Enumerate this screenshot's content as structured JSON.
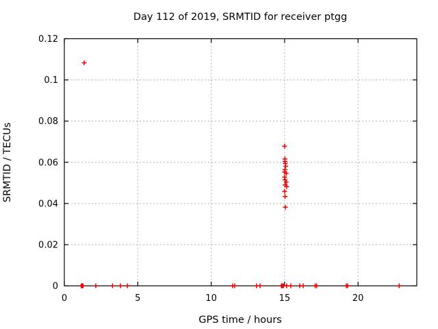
{
  "chart_data": {
    "type": "scatter",
    "title": "Day 112 of 2019, SRMTID for receiver ptgg",
    "xlabel": "GPS time / hours",
    "ylabel": "SRMTID / TECUs",
    "xlim": [
      0,
      24
    ],
    "ylim": [
      0,
      0.12
    ],
    "xticks": [
      0,
      5,
      10,
      15,
      20
    ],
    "xtick_labels": [
      "0",
      "5",
      "10",
      "15",
      "20"
    ],
    "yticks": [
      0,
      0.02,
      0.04,
      0.06,
      0.08,
      0.1,
      0.12
    ],
    "ytick_labels": [
      "0",
      "0.02",
      "0.04",
      "0.06",
      "0.08",
      "0.1",
      "0.12"
    ],
    "grid": true,
    "grid_style": "dashed",
    "legend": false,
    "marker": "plus",
    "colors": {
      "marker": "#ee0000",
      "grid": "#b0b0b0",
      "axis": "#000000",
      "text": "#000000",
      "background": "#ffffff"
    },
    "series": [
      {
        "name": "SRMTID",
        "points": [
          [
            1.35,
            0.1083
          ],
          [
            15.0,
            0.0678
          ],
          [
            15.02,
            0.0616
          ],
          [
            15.02,
            0.0604
          ],
          [
            15.05,
            0.0594
          ],
          [
            15.07,
            0.0581
          ],
          [
            15.02,
            0.0564
          ],
          [
            15.0,
            0.0553
          ],
          [
            15.11,
            0.0546
          ],
          [
            15.0,
            0.0528
          ],
          [
            15.03,
            0.0515
          ],
          [
            15.11,
            0.0504
          ],
          [
            15.03,
            0.049
          ],
          [
            15.14,
            0.0482
          ],
          [
            15.0,
            0.0459
          ],
          [
            15.03,
            0.0434
          ],
          [
            15.05,
            0.0382
          ],
          [
            1.15,
            0
          ],
          [
            1.21,
            0
          ],
          [
            1.27,
            0
          ],
          [
            2.14,
            0
          ],
          [
            3.28,
            0
          ],
          [
            3.82,
            0
          ],
          [
            4.29,
            0
          ],
          [
            11.46,
            0
          ],
          [
            11.6,
            0
          ],
          [
            13.09,
            0
          ],
          [
            13.33,
            0
          ],
          [
            14.78,
            0
          ],
          [
            14.85,
            0
          ],
          [
            14.92,
            0
          ],
          [
            15.14,
            0
          ],
          [
            15.42,
            0
          ],
          [
            16.03,
            0
          ],
          [
            16.26,
            0
          ],
          [
            17.08,
            0
          ],
          [
            17.18,
            0
          ],
          [
            19.2,
            0
          ],
          [
            19.29,
            0
          ],
          [
            22.8,
            0
          ]
        ]
      }
    ]
  }
}
